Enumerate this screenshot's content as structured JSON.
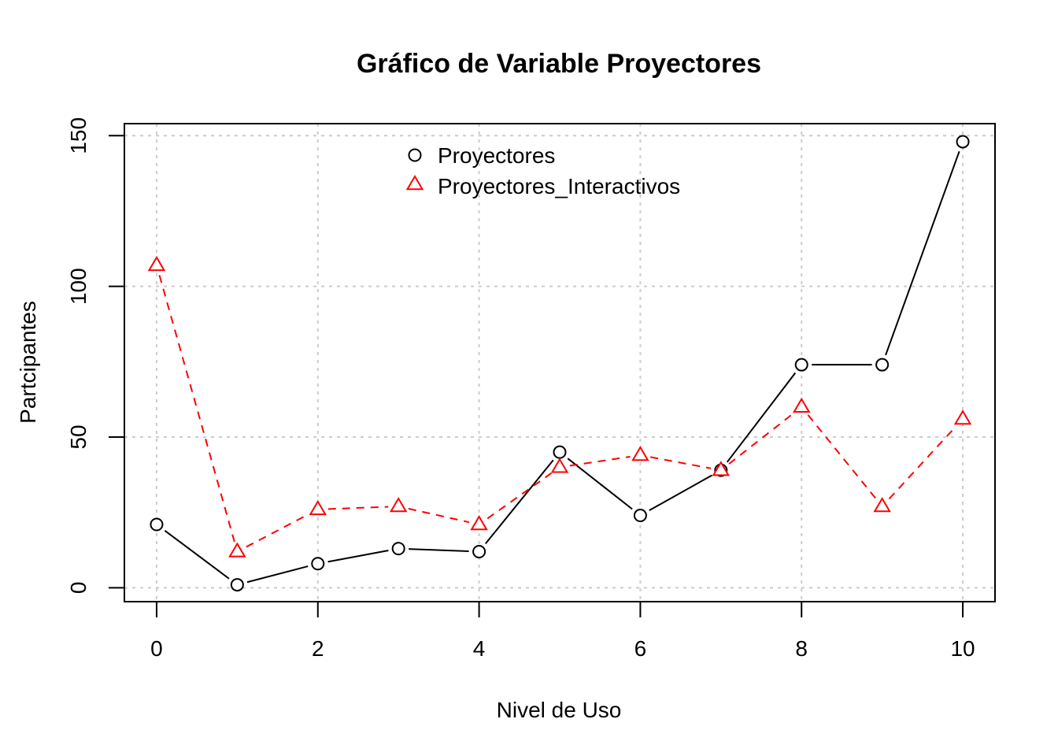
{
  "chart_data": {
    "type": "line",
    "title": "Gráfico de Variable Proyectores",
    "xlabel": "Nivel de Uso",
    "ylabel": "Partcipantes",
    "x": [
      0,
      1,
      2,
      3,
      4,
      5,
      6,
      7,
      8,
      9,
      10
    ],
    "xlim": [
      -0.4,
      10.4
    ],
    "ylim": [
      -4.6,
      154
    ],
    "xticks": [
      0,
      2,
      4,
      6,
      8,
      10
    ],
    "yticks": [
      0,
      50,
      100,
      150
    ],
    "x_tick_labels": [
      "0",
      "2",
      "4",
      "6",
      "8",
      "10"
    ],
    "y_tick_labels": [
      "0",
      "50",
      "100",
      "150"
    ],
    "grid": true,
    "legend_position": "top-center",
    "series": [
      {
        "name": "Proyectores",
        "values": [
          21,
          1,
          8,
          13,
          12,
          45,
          24,
          39,
          74,
          74,
          148
        ],
        "color": "#000000",
        "marker": "circle",
        "line_style": "solid"
      },
      {
        "name": "Proyectores_Interactivos",
        "values": [
          107,
          12,
          26,
          27,
          21,
          40,
          44,
          39,
          60,
          27,
          56
        ],
        "color": "#ff0000",
        "marker": "triangle",
        "line_style": "dashed"
      }
    ]
  }
}
